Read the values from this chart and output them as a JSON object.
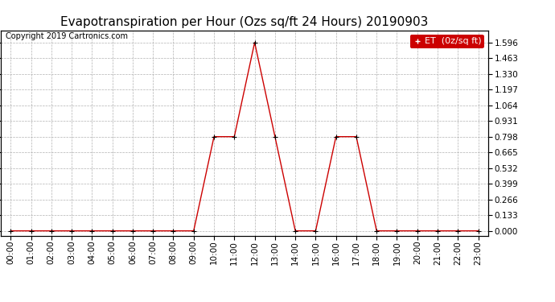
{
  "title": "Evapotranspiration per Hour (Ozs sq/ft 24 Hours) 20190903",
  "copyright": "Copyright 2019 Cartronics.com",
  "legend_label": "ET  (0z/sq ft)",
  "legend_bg": "#cc0000",
  "legend_text_color": "#ffffff",
  "line_color": "#cc0000",
  "marker_color": "#000000",
  "background_color": "#ffffff",
  "grid_color": "#aaaaaa",
  "hours": [
    "00:00",
    "01:00",
    "02:00",
    "03:00",
    "04:00",
    "05:00",
    "06:00",
    "07:00",
    "08:00",
    "09:00",
    "10:00",
    "11:00",
    "12:00",
    "13:00",
    "14:00",
    "15:00",
    "16:00",
    "17:00",
    "18:00",
    "19:00",
    "20:00",
    "21:00",
    "22:00",
    "23:00"
  ],
  "values": [
    0.0,
    0.0,
    0.0,
    0.0,
    0.0,
    0.0,
    0.0,
    0.0,
    0.0,
    0.0,
    0.798,
    0.798,
    1.596,
    0.798,
    0.0,
    0.0,
    0.798,
    0.798,
    0.0,
    0.0,
    0.0,
    0.0,
    0.0,
    0.0
  ],
  "yticks": [
    0.0,
    0.133,
    0.266,
    0.399,
    0.532,
    0.665,
    0.798,
    0.931,
    1.064,
    1.197,
    1.33,
    1.463,
    1.596
  ],
  "ylim": [
    -0.04,
    1.7
  ],
  "title_fontsize": 11,
  "copyright_fontsize": 7,
  "tick_fontsize": 7.5,
  "legend_fontsize": 8
}
